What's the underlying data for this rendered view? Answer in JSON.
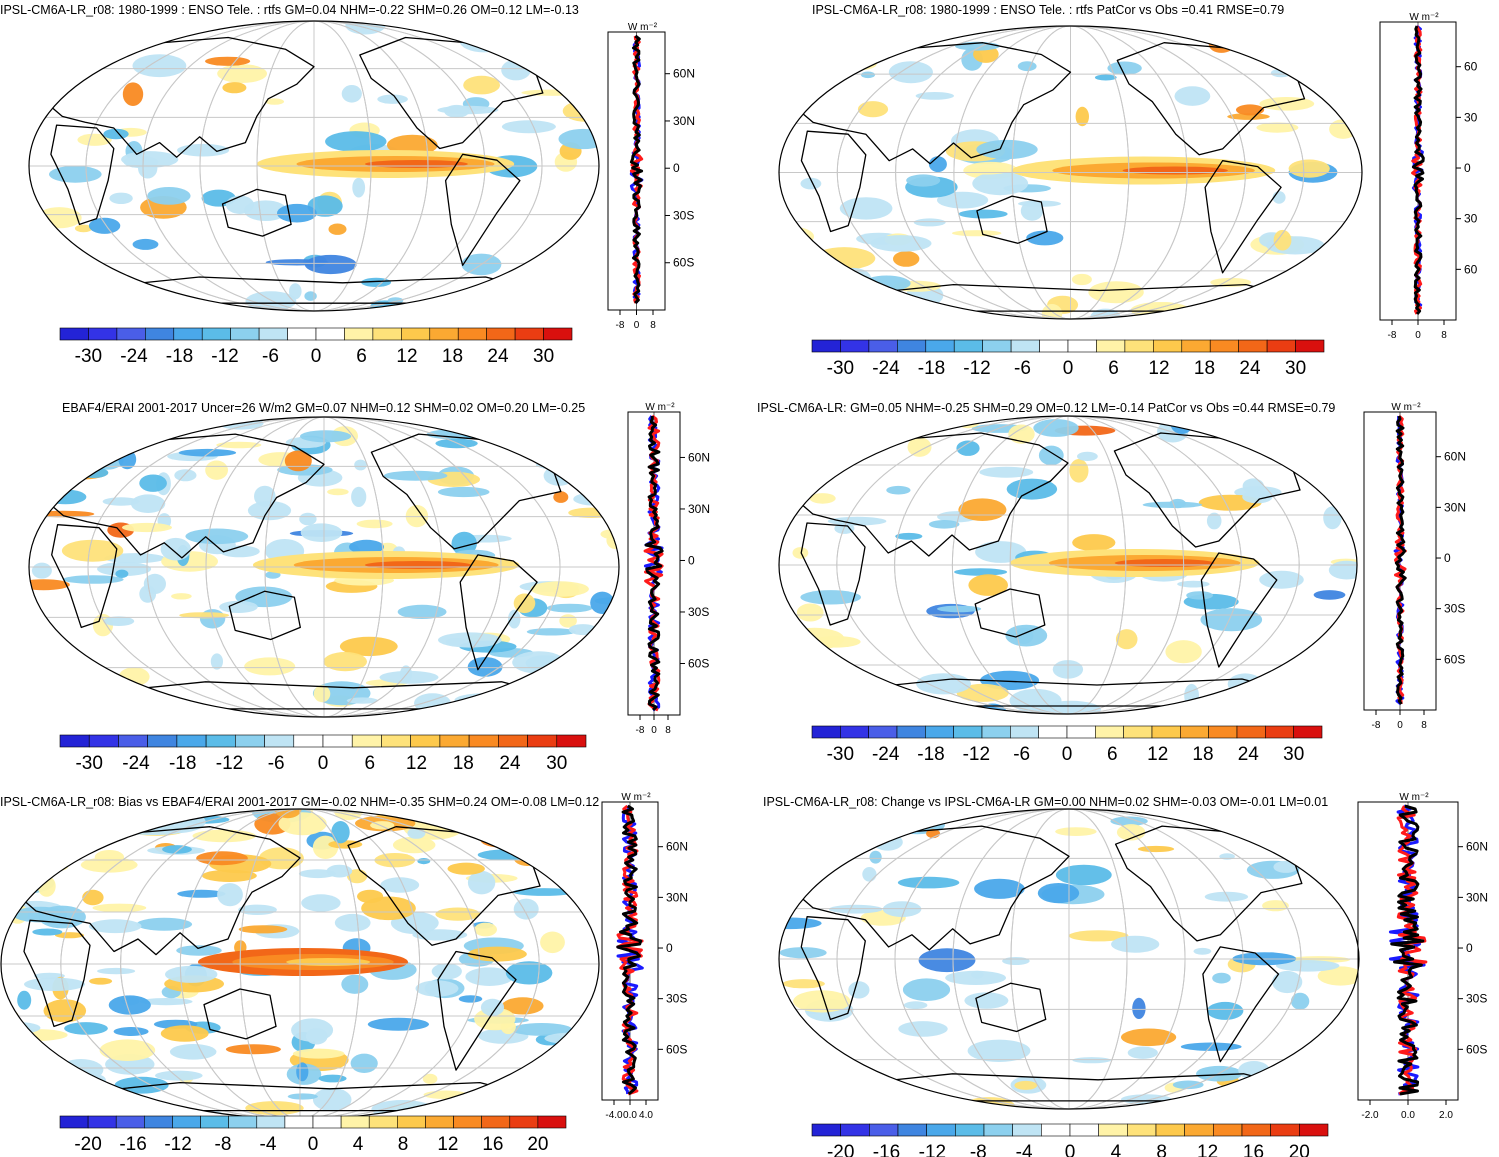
{
  "colors": {
    "diverging": [
      "#2323d6",
      "#3333e6",
      "#4a5ee8",
      "#3f85e0",
      "#4aa8ea",
      "#5bbce8",
      "#8cd0ee",
      "#bfe4f4",
      "#ffffff",
      "#ffffff",
      "#fff3a8",
      "#fee27a",
      "#fdc94c",
      "#fba932",
      "#f98a22",
      "#f26718",
      "#ea3d12",
      "#d9100e"
    ],
    "line_blue": "#1a1aff",
    "line_red": "#ff1a1a",
    "line_black": "#000000",
    "grid": "#c8c8c8"
  },
  "units_label": "W m⁻²",
  "panels": [
    {
      "id": "p1",
      "title": "IPSL-CM6A-LR_r08: 1980-1999 : ENSO Tele. : rtfs GM=0.04 NHM=-0.22 SHM=0.26 OM=0.12 LM=-0.13",
      "colorbar_labels": [
        "-30",
        "-24",
        "-18",
        "-12",
        "-6",
        "0",
        "6",
        "12",
        "18",
        "24",
        "30"
      ],
      "profile_ticks_x": [
        "-8",
        "0",
        "8"
      ],
      "profile_ticks_y": [
        "60N",
        "30N",
        "0",
        "30S",
        "60S"
      ]
    },
    {
      "id": "p2",
      "title": "IPSL-CM6A-LR_r08: 1980-1999 : ENSO Tele. : rtfs PatCor vs Obs =0.41 RMSE=0.79",
      "colorbar_labels": [
        "-30",
        "-24",
        "-18",
        "-12",
        "-6",
        "0",
        "6",
        "12",
        "18",
        "24",
        "30"
      ],
      "profile_ticks_x": [
        "-8",
        "0",
        "8"
      ],
      "profile_ticks_y": [
        "60",
        "30",
        "0",
        "30",
        "60"
      ]
    },
    {
      "id": "p3",
      "title": "EBAF4/ERAI 2001-2017 Uncer=26 W/m2 GM=0.07 NHM=0.12 SHM=0.02 OM=0.20 LM=-0.25",
      "colorbar_labels": [
        "-30",
        "-24",
        "-18",
        "-12",
        "-6",
        "0",
        "6",
        "12",
        "18",
        "24",
        "30"
      ],
      "profile_ticks_x": [
        "-8",
        "0",
        "8"
      ],
      "profile_ticks_y": [
        "60N",
        "30N",
        "0",
        "30S",
        "60S"
      ]
    },
    {
      "id": "p4",
      "title": "IPSL-CM6A-LR: GM=0.05 NHM=-0.25 SHM=0.29 OM=0.12 LM=-0.14 PatCor vs Obs =0.44 RMSE=0.79",
      "colorbar_labels": [
        "-30",
        "-24",
        "-18",
        "-12",
        "-6",
        "0",
        "6",
        "12",
        "18",
        "24",
        "30"
      ],
      "profile_ticks_x": [
        "-8",
        "0",
        "8"
      ],
      "profile_ticks_y": [
        "60N",
        "30N",
        "0",
        "30S",
        "60S"
      ]
    },
    {
      "id": "p5",
      "title": "IPSL-CM6A-LR_r08: Bias vs EBAF4/ERAI 2001-2017 GM=-0.02 NHM=-0.35 SHM=0.24 OM=-0.08 LM=0.12",
      "colorbar_labels": [
        "-20",
        "-16",
        "-12",
        "-8",
        "-4",
        "0",
        "4",
        "8",
        "12",
        "16",
        "20"
      ],
      "profile_ticks_x": [
        "-4.0",
        "0.0",
        "4.0"
      ],
      "profile_ticks_y": [
        "60N",
        "30N",
        "0",
        "30S",
        "60S"
      ]
    },
    {
      "id": "p6",
      "title": "IPSL-CM6A-LR_r08: Change vs IPSL-CM6A-LR GM=0.00 NHM=0.02 SHM=-0.03 OM=-0.01 LM=0.01",
      "colorbar_labels": [
        "-20",
        "-16",
        "-12",
        "-8",
        "-4",
        "0",
        "4",
        "8",
        "12",
        "16",
        "20"
      ],
      "profile_ticks_x": [
        "-2.0",
        "0.0",
        "2.0"
      ],
      "profile_ticks_y": [
        "60N",
        "30N",
        "0",
        "30S",
        "60S"
      ]
    }
  ],
  "chart_data": [
    {
      "type": "heatmap",
      "panel": "p1",
      "title": "IPSL-CM6A-LR_r08: 1980-1999 : ENSO Tele. : rtfs GM=0.04 NHM=-0.22 SHM=0.26 OM=0.12 LM=-0.13",
      "colorbar_range": [
        -30,
        30
      ],
      "colorbar_ticks": [
        -30,
        -24,
        -18,
        -12,
        -6,
        0,
        6,
        12,
        18,
        24,
        30
      ],
      "pattern": "equatorial Pacific warm tongue (positive) with weak negative bands elsewhere",
      "profile": {
        "type": "line",
        "xlim": [
          -8,
          8
        ],
        "y_ticks": [
          "60N",
          "30N",
          "0",
          "30S",
          "60S"
        ],
        "series": [
          {
            "color": "blue"
          },
          {
            "color": "red"
          },
          {
            "color": "black"
          }
        ]
      }
    },
    {
      "type": "heatmap",
      "panel": "p2",
      "title": "IPSL-CM6A-LR_r08: 1980-1999 : ENSO Tele. : rtfs PatCor vs Obs =0.41 RMSE=0.79",
      "colorbar_range": [
        -30,
        30
      ],
      "colorbar_ticks": [
        -30,
        -24,
        -18,
        -12,
        -6,
        0,
        6,
        12,
        18,
        24,
        30
      ],
      "profile": {
        "type": "line",
        "xlim": [
          -8,
          8
        ],
        "series": [
          {
            "color": "blue"
          },
          {
            "color": "red"
          },
          {
            "color": "black"
          }
        ]
      }
    },
    {
      "type": "heatmap",
      "panel": "p3",
      "title": "EBAF4/ERAI 2001-2017 Uncer=26 W/m2 GM=0.07 NHM=0.12 SHM=0.02 OM=0.20 LM=-0.25",
      "colorbar_range": [
        -30,
        30
      ],
      "colorbar_ticks": [
        -30,
        -24,
        -18,
        -12,
        -6,
        0,
        6,
        12,
        18,
        24,
        30
      ],
      "profile": {
        "type": "line",
        "xlim": [
          -8,
          8
        ],
        "series": [
          {
            "color": "blue"
          },
          {
            "color": "red"
          },
          {
            "color": "black"
          }
        ]
      }
    },
    {
      "type": "heatmap",
      "panel": "p4",
      "title": "IPSL-CM6A-LR: GM=0.05 NHM=-0.25 SHM=0.29 OM=0.12 LM=-0.14 PatCor vs Obs =0.44 RMSE=0.79",
      "colorbar_range": [
        -30,
        30
      ],
      "colorbar_ticks": [
        -30,
        -24,
        -18,
        -12,
        -6,
        0,
        6,
        12,
        18,
        24,
        30
      ],
      "profile": {
        "type": "line",
        "xlim": [
          -8,
          8
        ],
        "series": [
          {
            "color": "blue"
          },
          {
            "color": "red"
          },
          {
            "color": "black"
          }
        ]
      }
    },
    {
      "type": "heatmap",
      "panel": "p5",
      "title": "IPSL-CM6A-LR_r08: Bias vs EBAF4/ERAI 2001-2017 GM=-0.02 NHM=-0.35 SHM=0.24 OM=-0.08 LM=0.12",
      "colorbar_range": [
        -20,
        20
      ],
      "colorbar_ticks": [
        -20,
        -16,
        -12,
        -8,
        -4,
        0,
        4,
        8,
        12,
        16,
        20
      ],
      "profile": {
        "type": "line",
        "xlim": [
          -4,
          4
        ],
        "series": [
          {
            "color": "blue"
          },
          {
            "color": "red"
          },
          {
            "color": "black"
          }
        ]
      }
    },
    {
      "type": "heatmap",
      "panel": "p6",
      "title": "IPSL-CM6A-LR_r08: Change vs IPSL-CM6A-LR GM=0.00 NHM=0.02 SHM=-0.03 OM=-0.01 LM=0.01",
      "colorbar_range": [
        -20,
        20
      ],
      "colorbar_ticks": [
        -20,
        -16,
        -12,
        -8,
        -4,
        0,
        4,
        8,
        12,
        16,
        20
      ],
      "profile": {
        "type": "line",
        "xlim": [
          -2,
          2
        ],
        "series": [
          {
            "color": "blue"
          },
          {
            "color": "red"
          },
          {
            "color": "black"
          }
        ]
      }
    }
  ]
}
